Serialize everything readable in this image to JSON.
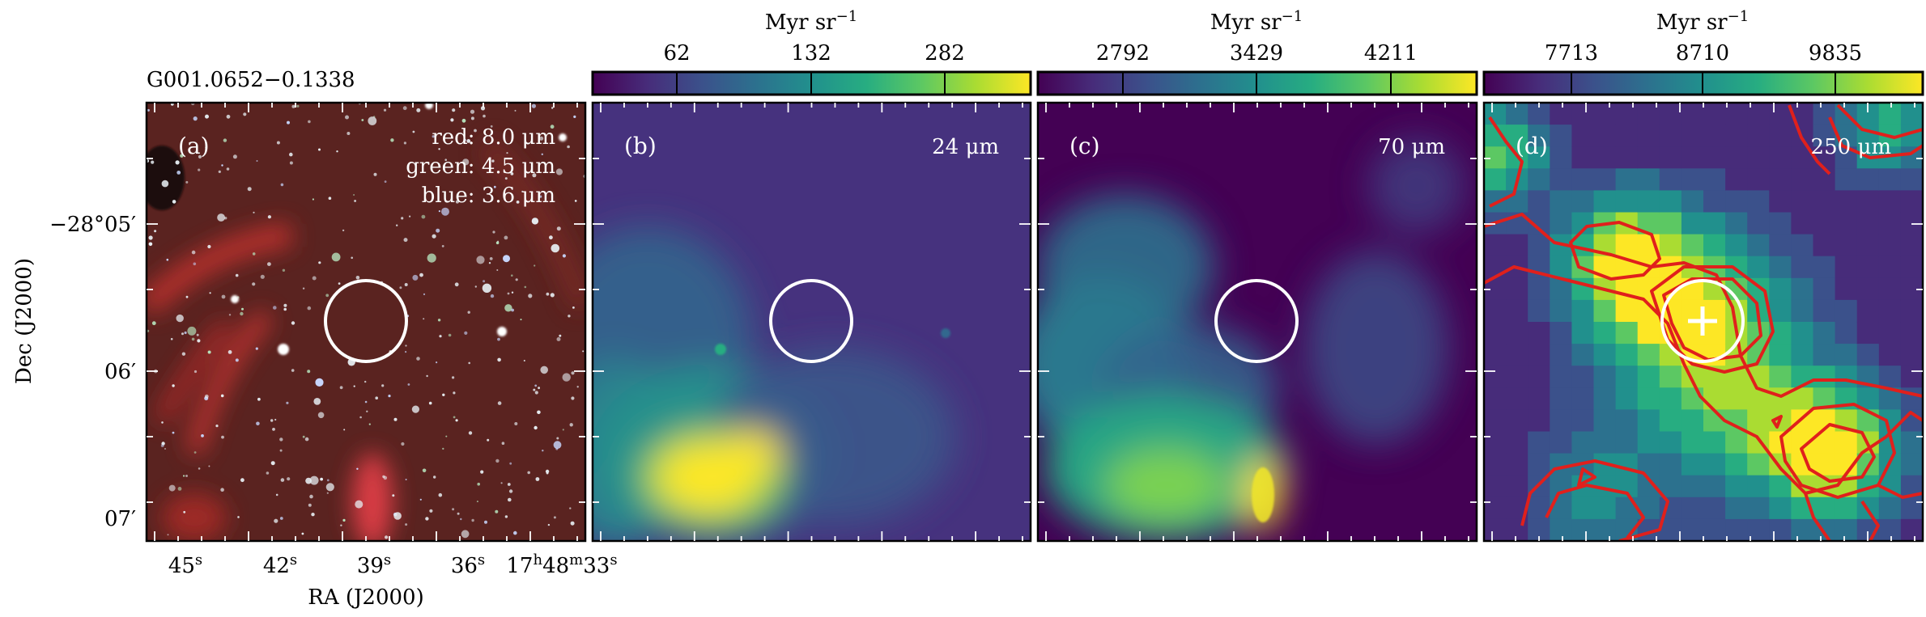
{
  "source_name": "G001.0652−0.1338",
  "axes": {
    "ra_label": "RA (J2000)",
    "dec_label": "Dec (J2000)",
    "ra_ticks": [
      {
        "sec": 45,
        "main": "45",
        "sup": "s"
      },
      {
        "sec": 42,
        "main": "42",
        "sup": "s"
      },
      {
        "sec": 39,
        "main": "39",
        "sup": "s"
      },
      {
        "sec": 36,
        "main": "36",
        "sup": "s"
      },
      {
        "sec": 33,
        "main": "17",
        "sup": "h",
        "main2": "48",
        "sup2": "m",
        "main3": "33",
        "sup3": "s"
      }
    ],
    "dec_ticks": [
      {
        "arcmin": 5,
        "label": "−28°05′"
      },
      {
        "arcmin": 6,
        "label": "06′"
      },
      {
        "arcmin": 7,
        "label": "07′"
      }
    ]
  },
  "panels": [
    {
      "id": "a",
      "tag": "(a)",
      "legend": [
        "red: 8.0 μm",
        "green: 4.5 μm",
        "blue: 3.6 μm"
      ],
      "colors": {
        "background": "#5a2320",
        "stars": "#e8f0f4"
      }
    },
    {
      "id": "b",
      "tag": "(b)",
      "band": "24 μm",
      "colorbar": {
        "unit_main": "Myr sr",
        "unit_sup": "−1",
        "ticks": [
          "62",
          "132",
          "282"
        ]
      }
    },
    {
      "id": "c",
      "tag": "(c)",
      "band": "70 μm",
      "colorbar": {
        "unit_main": "Myr sr",
        "unit_sup": "−1",
        "ticks": [
          "2792",
          "3429",
          "4211"
        ]
      }
    },
    {
      "id": "d",
      "tag": "(d)",
      "band": "250 μm",
      "colorbar": {
        "unit_main": "Myr sr",
        "unit_sup": "−1",
        "ticks": [
          "7713",
          "8710",
          "9835"
        ]
      },
      "contour_color": "#e0201c"
    }
  ],
  "aperture_color": "#ffffff",
  "colormap": [
    "#440154",
    "#472c7a",
    "#3b518b",
    "#2c718e",
    "#21908d",
    "#27ad81",
    "#5cc863",
    "#aadc32",
    "#fde725"
  ]
}
